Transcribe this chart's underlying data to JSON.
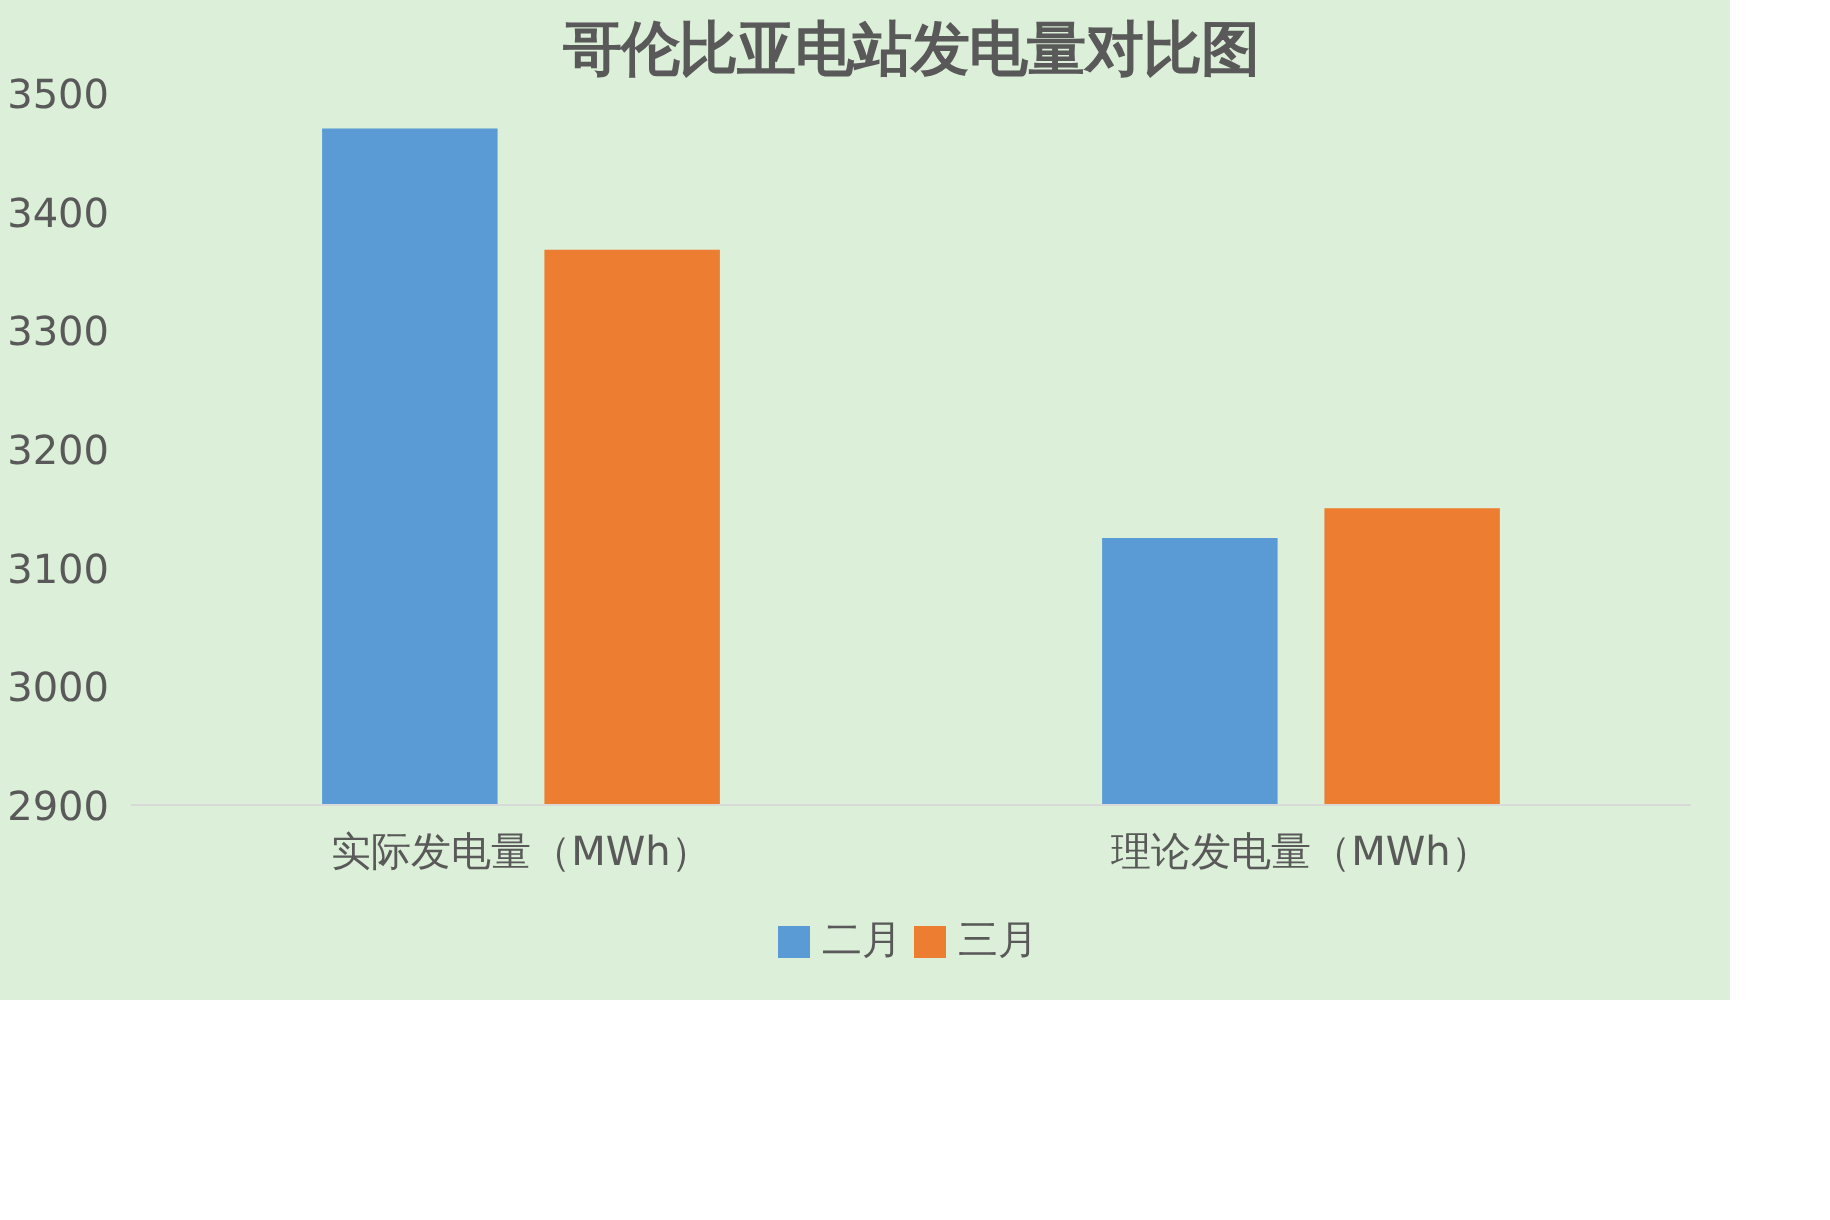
{
  "chart_data": {
    "type": "bar",
    "title": "哥伦比亚电站发电量对比图",
    "categories": [
      "实际发电量（MWh）",
      "理论发电量（MWh）"
    ],
    "series": [
      {
        "name": "二月",
        "color": "#5b9bd5",
        "values": [
          3470,
          3125
        ]
      },
      {
        "name": "三月",
        "color": "#ed7d31",
        "values": [
          3368,
          3150
        ]
      }
    ],
    "ylim": [
      2900,
      3500
    ],
    "yticks": [
      2900,
      3000,
      3100,
      3200,
      3300,
      3400,
      3500
    ],
    "legend": "bottom"
  }
}
